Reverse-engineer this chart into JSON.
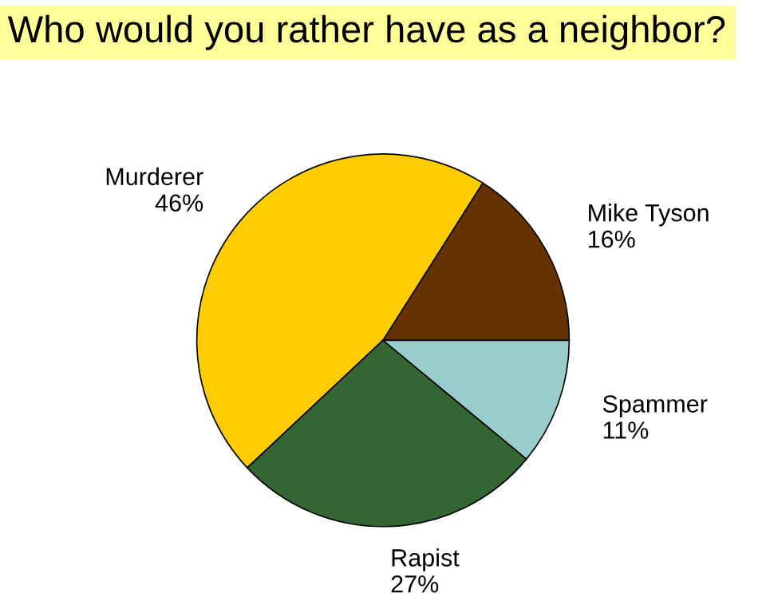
{
  "chart_data": {
    "type": "pie",
    "title": "Who would you rather have as a neighbor?",
    "categories": [
      "Mike Tyson",
      "Murderer",
      "Rapist",
      "Spammer"
    ],
    "values": [
      16,
      46,
      27,
      11
    ],
    "value_labels": [
      "16%",
      "46%",
      "27%",
      "11%"
    ],
    "colors": [
      "#663300",
      "#ffcc00",
      "#336633",
      "#99cccc"
    ],
    "legend": false
  }
}
